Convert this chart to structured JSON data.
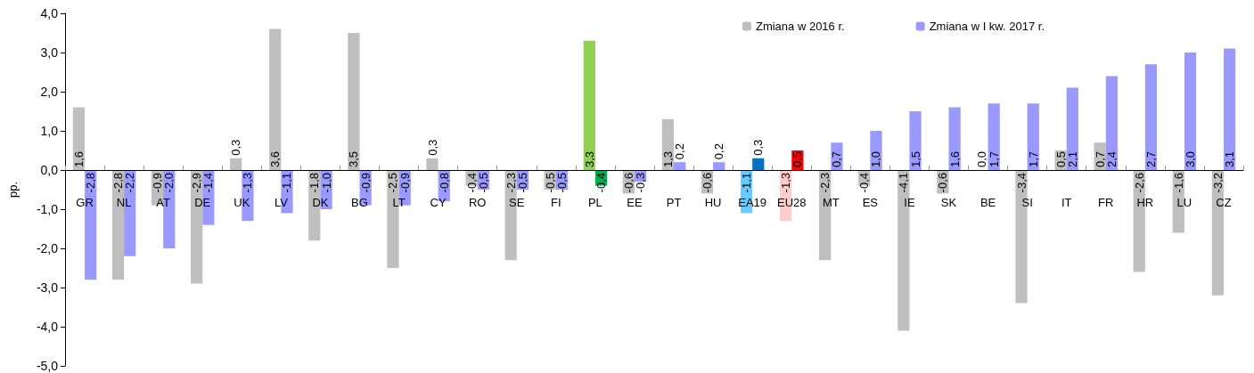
{
  "chart_data": {
    "type": "bar",
    "ylabel": "pp.",
    "categories": [
      "GR",
      "NL",
      "AT",
      "DE",
      "UK",
      "LV",
      "DK",
      "BG",
      "LT",
      "CY",
      "RO",
      "SE",
      "FI",
      "PL",
      "EE",
      "PT",
      "HU",
      "EA19",
      "EU28",
      "MT",
      "ES",
      "IE",
      "SK",
      "BE",
      "SI",
      "IT",
      "FR",
      "HR",
      "LU",
      "CZ"
    ],
    "series": [
      {
        "name": "Zmiana w 2016 r.",
        "color": "#bfbfbf",
        "colors": [
          "#bfbfbf",
          "#bfbfbf",
          "#bfbfbf",
          "#bfbfbf",
          "#bfbfbf",
          "#bfbfbf",
          "#bfbfbf",
          "#bfbfbf",
          "#bfbfbf",
          "#bfbfbf",
          "#bfbfbf",
          "#bfbfbf",
          "#bfbfbf",
          "#92d050",
          "#bfbfbf",
          "#bfbfbf",
          "#bfbfbf",
          "#66ccff",
          "#ffcccc",
          "#bfbfbf",
          "#bfbfbf",
          "#bfbfbf",
          "#bfbfbf",
          "#bfbfbf",
          "#bfbfbf",
          "#bfbfbf",
          "#bfbfbf",
          "#bfbfbf",
          "#bfbfbf",
          "#bfbfbf"
        ],
        "values": [
          1.6,
          -2.8,
          -0.9,
          -2.9,
          0.3,
          3.6,
          -1.8,
          3.5,
          -2.5,
          0.3,
          -0.4,
          -2.3,
          -0.5,
          3.3,
          -0.6,
          1.3,
          -0.6,
          -1.1,
          -1.3,
          -2.3,
          -0.4,
          -4.1,
          -0.6,
          0.0,
          -3.4,
          0.5,
          0.7,
          -2.6,
          -1.6,
          -3.2
        ],
        "value_labels": [
          "1,6",
          "-2,8",
          "-0,9",
          "-2,9",
          "0,3",
          "3,6",
          "-1,8",
          "3,5",
          "-2,5",
          "0,3",
          "-0,4",
          "-2,3",
          "-0,5",
          "3,3",
          "-0,6",
          "1,3",
          "-0,6",
          "-1,1",
          "-1,3",
          "-2,3",
          "-0,4",
          "-4,1",
          "-0,6",
          "0,0",
          "-3,4",
          "0,5",
          "0,7",
          "-2,6",
          "-1,6",
          "-3,2"
        ]
      },
      {
        "name": "Zmiana w I kw. 2017 r.",
        "color": "#9999ff",
        "colors": [
          "#9999ff",
          "#9999ff",
          "#9999ff",
          "#9999ff",
          "#9999ff",
          "#9999ff",
          "#9999ff",
          "#9999ff",
          "#9999ff",
          "#9999ff",
          "#9999ff",
          "#9999ff",
          "#9999ff",
          "#00b050",
          "#9999ff",
          "#9999ff",
          "#9999ff",
          "#0070c0",
          "#ff0000",
          "#9999ff",
          "#9999ff",
          "#9999ff",
          "#9999ff",
          "#9999ff",
          "#9999ff",
          "#9999ff",
          "#9999ff",
          "#9999ff",
          "#9999ff",
          "#9999ff"
        ],
        "values": [
          -2.8,
          -2.2,
          -2.0,
          -1.4,
          -1.3,
          -1.1,
          -1.0,
          -0.9,
          -0.9,
          -0.8,
          -0.5,
          -0.5,
          -0.5,
          -0.4,
          -0.3,
          0.2,
          0.2,
          0.3,
          0.5,
          0.7,
          1.0,
          1.5,
          1.6,
          1.7,
          1.7,
          2.1,
          2.4,
          2.7,
          3.0,
          3.1
        ],
        "value_labels": [
          "-2,8",
          "-2,2",
          "-2,0",
          "-1,4",
          "-1,3",
          "-1,1",
          "-1,0",
          "-0,9",
          "-0,9",
          "-0,8",
          "-0,5",
          "-0,5",
          "-0,5",
          "-0,4",
          "-0,3",
          "0,2",
          "0,2",
          "0,3",
          "0,5",
          "0,7",
          "1,0",
          "1,5",
          "1,6",
          "1,7",
          "1,7",
          "2,1",
          "2,4",
          "2,7",
          "3,0",
          "3,1"
        ]
      }
    ],
    "ylim": [
      -5,
      4
    ],
    "yticks": [
      {
        "value": -5,
        "label": "-5,0"
      },
      {
        "value": -4,
        "label": "-4,0"
      },
      {
        "value": -3,
        "label": "-3,0"
      },
      {
        "value": -2,
        "label": "-2,0"
      },
      {
        "value": -1,
        "label": "-1,0"
      },
      {
        "value": 0,
        "label": "0,0"
      },
      {
        "value": 1,
        "label": "1,0"
      },
      {
        "value": 2,
        "label": "2,0"
      },
      {
        "value": 3,
        "label": "3,0"
      },
      {
        "value": 4,
        "label": "4,0"
      }
    ],
    "grid": false,
    "legend": "top right"
  }
}
